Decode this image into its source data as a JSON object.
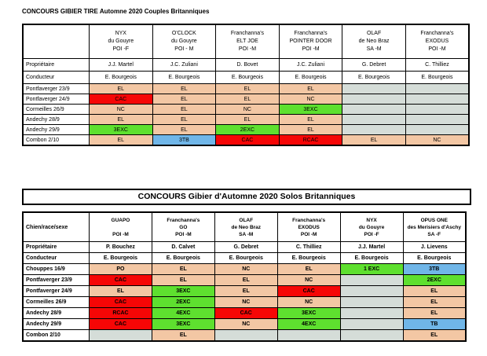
{
  "page": {
    "title1": "CONCOURS GIBIER TIRE Automne 2020 Couples Britanniques",
    "title2": "CONCOURS Gibier d'Automne 2020 Solos Britanniques"
  },
  "colors": {
    "salmon": "#F3C7A4",
    "red": "#F60606",
    "green": "#5EE02F",
    "blue": "#70B6E8",
    "grey": "#D5DDD8",
    "white": "#FFFFFF"
  },
  "table1": {
    "corner": "",
    "owner_label": "Propriétaire",
    "handler_label": "Conducteur",
    "dogs": [
      {
        "lines": [
          "NYX",
          "du Gouyre",
          "POI -F"
        ]
      },
      {
        "lines": [
          "O'CLOCK",
          "du  Gouyre",
          "POI - M"
        ]
      },
      {
        "lines": [
          "Franchanna's",
          "ELT JOE",
          "POI -M"
        ]
      },
      {
        "lines": [
          "Franchanna's",
          "POINTER DOOR",
          "POI -M"
        ]
      },
      {
        "lines": [
          "OLAF",
          "de Neo Braz",
          "SA -M"
        ]
      },
      {
        "lines": [
          "Franchanna's",
          "EXODUS",
          "POI -M"
        ]
      }
    ],
    "owners": [
      "J.J. Martel",
      "J.C. Zuliani",
      "D. Bovet",
      "J.C. Zuliani",
      "G. Debret",
      "C. Thilliez"
    ],
    "handlers": [
      "E. Bourgeois",
      "E. Bourgeois",
      "E. Bourgeois",
      "E. Bourgeois",
      "E. Bourgeois",
      "E. Bourgeois"
    ],
    "rows": [
      {
        "label": "Pontfaverger 23/9",
        "cells": [
          {
            "v": "EL",
            "c": "salmon"
          },
          {
            "v": "EL",
            "c": "salmon"
          },
          {
            "v": "EL",
            "c": "salmon"
          },
          {
            "v": "EL",
            "c": "salmon"
          },
          {
            "v": "",
            "c": "grey"
          },
          {
            "v": "",
            "c": "grey"
          }
        ]
      },
      {
        "label": "Pontfaverger 24/9",
        "cells": [
          {
            "v": "CAC",
            "c": "red"
          },
          {
            "v": "EL",
            "c": "salmon"
          },
          {
            "v": "EL",
            "c": "salmon"
          },
          {
            "v": "NC",
            "c": "salmon"
          },
          {
            "v": "",
            "c": "grey"
          },
          {
            "v": "",
            "c": "grey"
          }
        ]
      },
      {
        "label": "Cormeilles 26/9",
        "cells": [
          {
            "v": "NC",
            "c": "salmon"
          },
          {
            "v": "EL",
            "c": "salmon"
          },
          {
            "v": "NC",
            "c": "salmon"
          },
          {
            "v": "3EXC",
            "c": "green"
          },
          {
            "v": "",
            "c": "grey"
          },
          {
            "v": "",
            "c": "grey"
          }
        ]
      },
      {
        "label": "Andechy 28/9",
        "cells": [
          {
            "v": "EL",
            "c": "salmon"
          },
          {
            "v": "EL",
            "c": "salmon"
          },
          {
            "v": "EL",
            "c": "salmon"
          },
          {
            "v": "EL",
            "c": "salmon"
          },
          {
            "v": "",
            "c": "grey"
          },
          {
            "v": "",
            "c": "grey"
          }
        ]
      },
      {
        "label": "Andechy 29/9",
        "cells": [
          {
            "v": "3EXC",
            "c": "green"
          },
          {
            "v": "EL",
            "c": "salmon"
          },
          {
            "v": "2EXC",
            "c": "green"
          },
          {
            "v": "EL",
            "c": "salmon"
          },
          {
            "v": "",
            "c": "grey"
          },
          {
            "v": "",
            "c": "grey"
          }
        ]
      },
      {
        "label": "Combon 2/10",
        "cells": [
          {
            "v": "EL",
            "c": "salmon"
          },
          {
            "v": "3TB",
            "c": "blue"
          },
          {
            "v": "CAC",
            "c": "red"
          },
          {
            "v": "RCAC",
            "c": "red"
          },
          {
            "v": "EL",
            "c": "salmon"
          },
          {
            "v": "NC",
            "c": "salmon"
          }
        ]
      }
    ]
  },
  "table2": {
    "corner": "Chien/race/sexe",
    "owner_label": "Propriétaire",
    "handler_label": "Conducteur",
    "dogs": [
      {
        "lines": [
          "GUAPO",
          "",
          "POI -M"
        ]
      },
      {
        "lines": [
          "Franchanna's",
          "GO",
          "POI -M"
        ]
      },
      {
        "lines": [
          "OLAF",
          "de Neo Braz",
          "SA -M"
        ]
      },
      {
        "lines": [
          "Franchanna's",
          "EXODUS",
          "POI -M"
        ]
      },
      {
        "lines": [
          "NYX",
          "du Gouyre",
          "POI -F"
        ]
      },
      {
        "lines": [
          "OPUS ONE",
          "des Merisiers d'Aschy",
          "SA -F"
        ]
      }
    ],
    "owners": [
      "P. Bouchez",
      "D. Calvet",
      "G. Debret",
      "C. Thilliez",
      "J.J. Martel",
      "J. Lievens"
    ],
    "handlers": [
      "E. Bourgeois",
      "E. Bourgeois",
      "E. Bourgeois",
      "E. Bourgeois",
      "E. Bourgeois",
      "E. Bourgeois"
    ],
    "rows": [
      {
        "label": "Chouppes 16/9",
        "cells": [
          {
            "v": "PO",
            "c": "salmon"
          },
          {
            "v": "EL",
            "c": "salmon"
          },
          {
            "v": "NC",
            "c": "salmon"
          },
          {
            "v": "EL",
            "c": "salmon"
          },
          {
            "v": "1 EXC",
            "c": "green"
          },
          {
            "v": "3TB",
            "c": "blue"
          }
        ]
      },
      {
        "label": "Pontfaverger 23/9",
        "cells": [
          {
            "v": "CAC",
            "c": "red"
          },
          {
            "v": "EL",
            "c": "salmon"
          },
          {
            "v": "EL",
            "c": "salmon"
          },
          {
            "v": "NC",
            "c": "salmon"
          },
          {
            "v": "",
            "c": "grey"
          },
          {
            "v": "2EXC",
            "c": "green"
          }
        ]
      },
      {
        "label": "Pontfaverger 24/9",
        "cells": [
          {
            "v": "EL",
            "c": "salmon"
          },
          {
            "v": "3EXC",
            "c": "green"
          },
          {
            "v": "EL",
            "c": "salmon"
          },
          {
            "v": "CAC",
            "c": "red"
          },
          {
            "v": "",
            "c": "grey"
          },
          {
            "v": "EL",
            "c": "salmon"
          }
        ]
      },
      {
        "label": "Cormeilles 26/9",
        "cells": [
          {
            "v": "CAC",
            "c": "red"
          },
          {
            "v": "2EXC",
            "c": "green"
          },
          {
            "v": "NC",
            "c": "salmon"
          },
          {
            "v": "NC",
            "c": "salmon"
          },
          {
            "v": "",
            "c": "grey"
          },
          {
            "v": "EL",
            "c": "salmon"
          }
        ]
      },
      {
        "label": "Andechy 28/9",
        "cells": [
          {
            "v": "RCAC",
            "c": "red"
          },
          {
            "v": "4EXC",
            "c": "green"
          },
          {
            "v": "CAC",
            "c": "red"
          },
          {
            "v": "3EXC",
            "c": "green"
          },
          {
            "v": "",
            "c": "grey"
          },
          {
            "v": "EL",
            "c": "salmon"
          }
        ]
      },
      {
        "label": "Andechy 29/9",
        "cells": [
          {
            "v": "CAC",
            "c": "red"
          },
          {
            "v": "3EXC",
            "c": "green"
          },
          {
            "v": "NC",
            "c": "salmon"
          },
          {
            "v": "4EXC",
            "c": "green"
          },
          {
            "v": "",
            "c": "grey"
          },
          {
            "v": "TB",
            "c": "blue"
          }
        ]
      },
      {
        "label": "Combon 2/10",
        "cells": [
          {
            "v": "",
            "c": "grey"
          },
          {
            "v": "EL",
            "c": "salmon"
          },
          {
            "v": "",
            "c": "grey"
          },
          {
            "v": "",
            "c": "grey"
          },
          {
            "v": "",
            "c": "grey"
          },
          {
            "v": "EL",
            "c": "salmon"
          }
        ]
      }
    ]
  }
}
